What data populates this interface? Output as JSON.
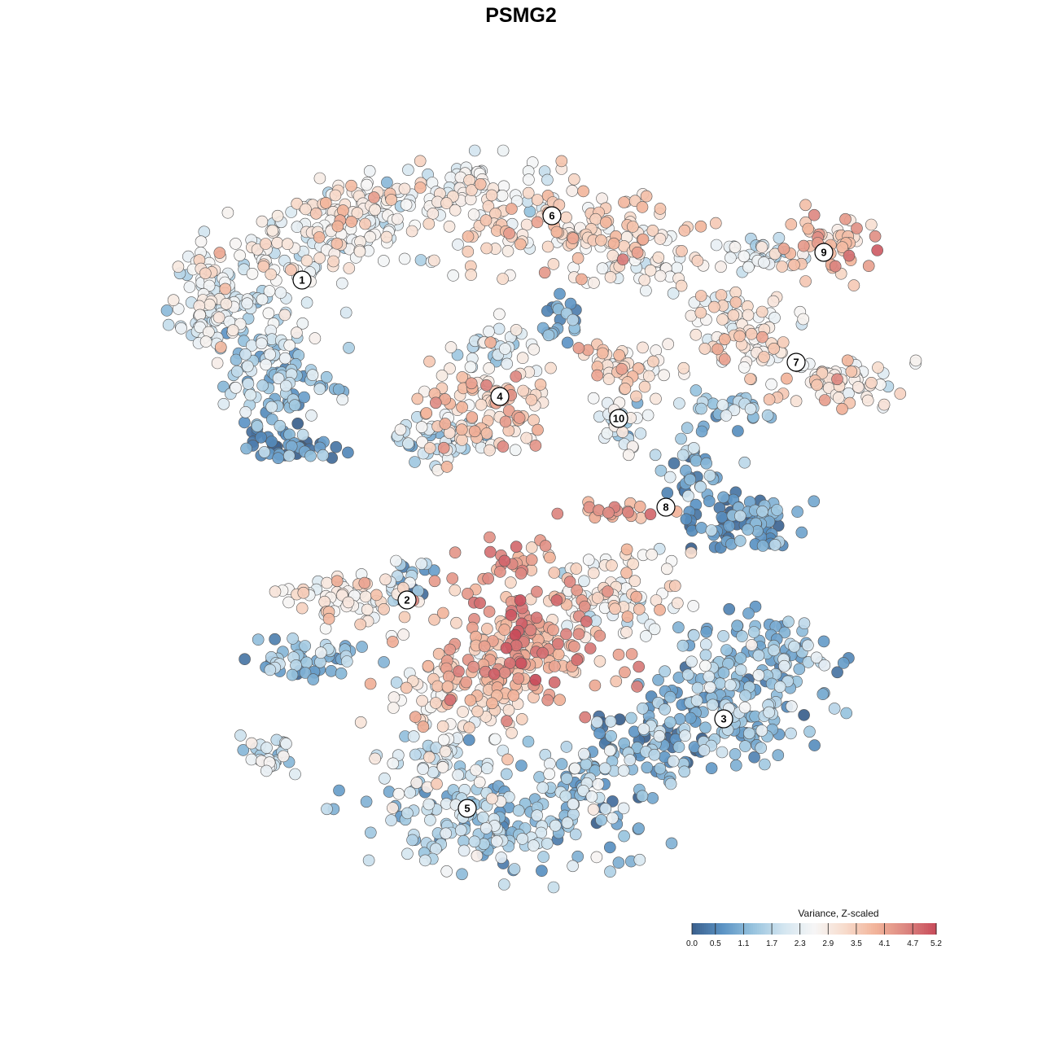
{
  "chart_data": {
    "type": "scatter",
    "title": "PSMG2",
    "xlabel": "",
    "ylabel": "",
    "grid": false,
    "legend": {
      "title": "Variance, Z-scaled",
      "placement": "bottom-right",
      "ticks": [
        "0.0",
        "0.5",
        "1.1",
        "1.7",
        "2.3",
        "2.9",
        "3.5",
        "4.1",
        "4.7",
        "5.2"
      ],
      "range": [
        0.0,
        5.2
      ],
      "colors": [
        "#3a5f8c",
        "#5b93c4",
        "#97c3de",
        "#d3e5f0",
        "#f6f6f6",
        "#f7dccd",
        "#f2b49a",
        "#dc8781",
        "#c84b5a"
      ]
    },
    "clusters": [
      {
        "id": "1",
        "center": [
          371,
          344
        ],
        "value": 2.4
      },
      {
        "id": "2",
        "center": [
          500,
          737
        ],
        "value": 2.6
      },
      {
        "id": "3",
        "center": [
          889,
          883
        ],
        "value": 1.2
      },
      {
        "id": "4",
        "center": [
          614,
          487
        ],
        "value": 3.2
      },
      {
        "id": "5",
        "center": [
          574,
          993
        ],
        "value": 1.6
      },
      {
        "id": "6",
        "center": [
          678,
          265
        ],
        "value": 3.1
      },
      {
        "id": "7",
        "center": [
          978,
          445
        ],
        "value": 3.0
      },
      {
        "id": "8",
        "center": [
          818,
          623
        ],
        "value": 0.9
      },
      {
        "id": "9",
        "center": [
          1012,
          310
        ],
        "value": 3.5
      },
      {
        "id": "10",
        "center": [
          760,
          514
        ],
        "value": 2.5
      }
    ]
  }
}
